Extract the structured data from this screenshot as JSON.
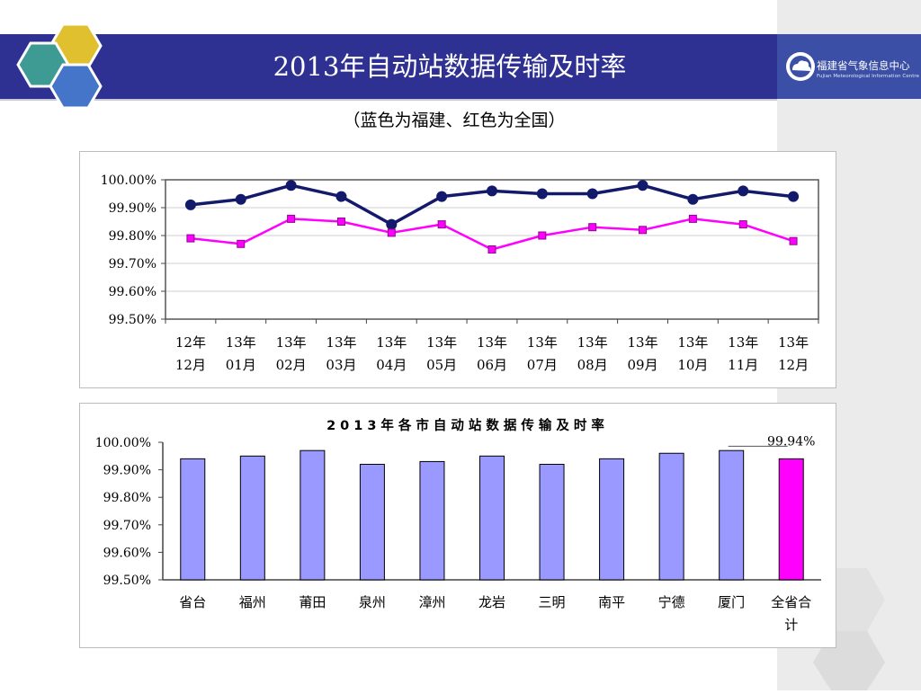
{
  "header": {
    "title": "2013年自动站数据传输及时率",
    "logo_name": "福建省气象信息中心",
    "logo_subtitle": "Fujian Meteorological Information Centre"
  },
  "subtitle": "（蓝色为福建、红色为全国）",
  "colors": {
    "header_bg": "#2e3192",
    "fujian_line": "#131a6b",
    "national_line": "#ff00ff",
    "bar_fill": "#9999ff",
    "total_bar_fill": "#ff00ff"
  },
  "chart_data": [
    {
      "type": "line",
      "title": "",
      "categories": [
        [
          "12年",
          "12月"
        ],
        [
          "13年",
          "01月"
        ],
        [
          "13年",
          "02月"
        ],
        [
          "13年",
          "03月"
        ],
        [
          "13年",
          "04月"
        ],
        [
          "13年",
          "05月"
        ],
        [
          "13年",
          "06月"
        ],
        [
          "13年",
          "07月"
        ],
        [
          "13年",
          "08月"
        ],
        [
          "13年",
          "09月"
        ],
        [
          "13年",
          "10月"
        ],
        [
          "13年",
          "11月"
        ],
        [
          "13年",
          "12月"
        ]
      ],
      "series": [
        {
          "color": "#131a6b",
          "marker": "circle",
          "values": [
            99.91,
            99.93,
            99.98,
            99.94,
            99.84,
            99.94,
            99.96,
            99.95,
            99.95,
            99.98,
            99.93,
            99.96,
            99.94
          ]
        },
        {
          "color": "#ff00ff",
          "marker": "square",
          "values": [
            99.79,
            99.77,
            99.86,
            99.85,
            99.81,
            99.84,
            99.75,
            99.8,
            99.83,
            99.82,
            99.86,
            99.84,
            99.78
          ]
        }
      ],
      "ylim": [
        99.5,
        100.0
      ],
      "yticks": [
        "100.00%",
        "99.90%",
        "99.80%",
        "99.70%",
        "99.60%",
        "99.50%"
      ],
      "grid": true
    },
    {
      "type": "bar",
      "title": "2013年各市自动站数据传输及时率",
      "categories": [
        [
          "省台"
        ],
        [
          "福州"
        ],
        [
          "莆田"
        ],
        [
          "泉州"
        ],
        [
          "漳州"
        ],
        [
          "龙岩"
        ],
        [
          "三明"
        ],
        [
          "南平"
        ],
        [
          "宁德"
        ],
        [
          "厦门"
        ],
        [
          "全省合",
          "计"
        ]
      ],
      "values": [
        99.94,
        99.95,
        99.97,
        99.92,
        99.93,
        99.95,
        99.92,
        99.94,
        99.96,
        99.97,
        99.94
      ],
      "highlight_index": 10,
      "annotation": "99.94%",
      "ylim": [
        99.5,
        100.0
      ],
      "yticks": [
        "100.00%",
        "99.90%",
        "99.80%",
        "99.70%",
        "99.60%",
        "99.50%"
      ],
      "grid": false
    }
  ]
}
